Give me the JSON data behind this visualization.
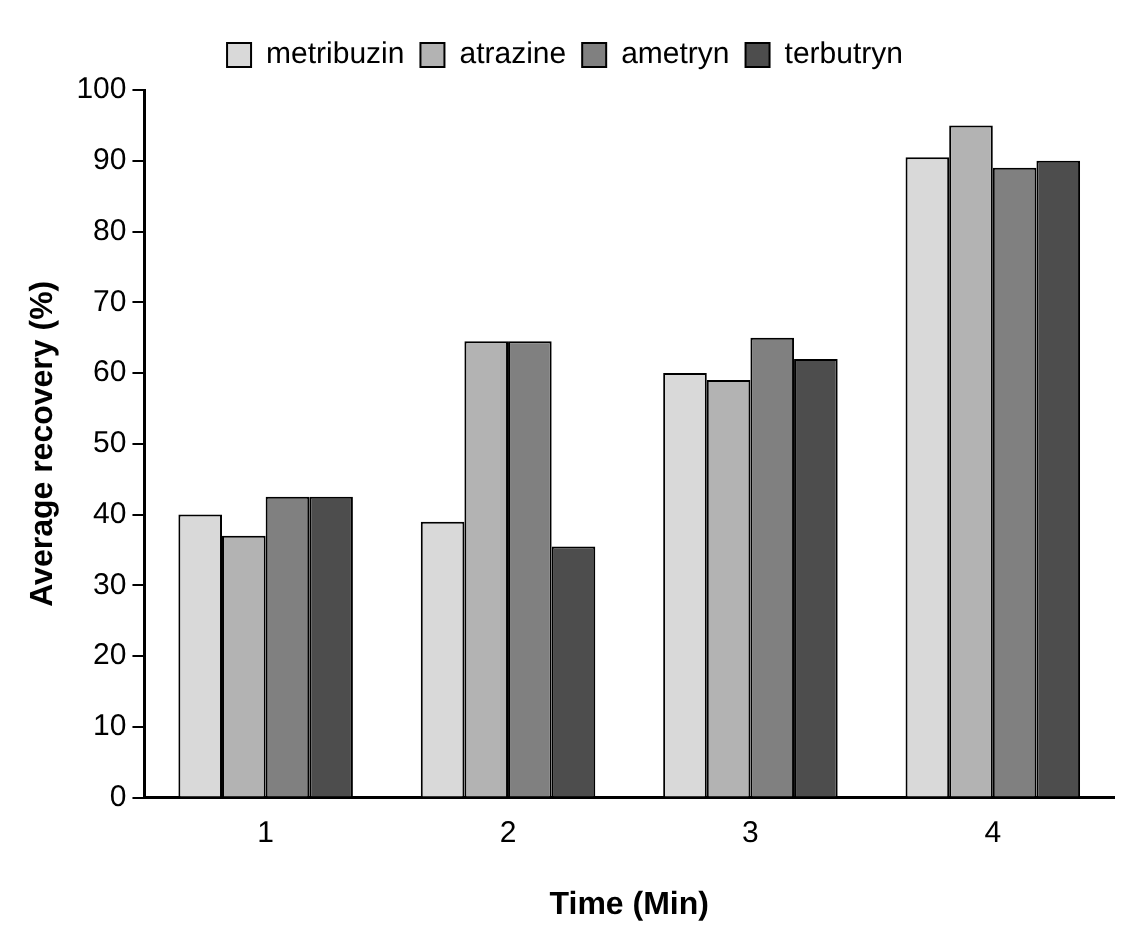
{
  "chart_data": {
    "type": "bar",
    "xlabel": "Time (Min)",
    "ylabel": "Average recovery (%)",
    "categories": [
      "1",
      "2",
      "3",
      "4"
    ],
    "series": [
      {
        "name": "metribuzin",
        "color": "#d9d9d9",
        "values": [
          40,
          39,
          60,
          90.5
        ]
      },
      {
        "name": "atrazine",
        "color": "#b3b3b3",
        "values": [
          37,
          64.5,
          59,
          95
        ]
      },
      {
        "name": "ametryn",
        "color": "#808080",
        "values": [
          42.5,
          64.5,
          65,
          89
        ]
      },
      {
        "name": "terbutryn",
        "color": "#4d4d4d",
        "values": [
          42.5,
          35.5,
          62,
          90
        ]
      }
    ],
    "ylim": [
      0,
      100
    ],
    "yticks": [
      0,
      10,
      20,
      30,
      40,
      50,
      60,
      70,
      80,
      90,
      100
    ],
    "grid": false,
    "legend": "top"
  }
}
